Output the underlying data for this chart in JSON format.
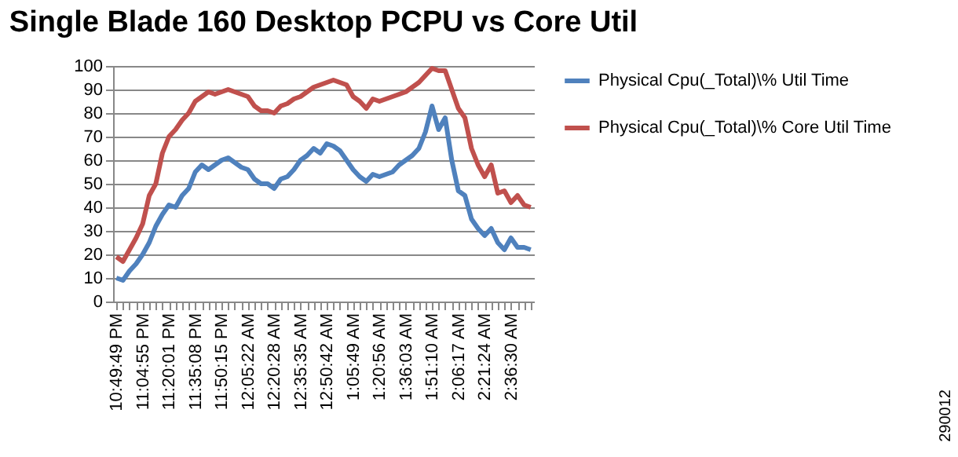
{
  "chart_data": {
    "type": "line",
    "title": "Single Blade 160 Desktop PCPU vs Core Util",
    "categories": [
      "10:49:49 PM",
      null,
      null,
      null,
      "11:04:55 PM",
      null,
      null,
      null,
      "11:20:01 PM",
      null,
      null,
      null,
      "11:35:08 PM",
      null,
      null,
      null,
      "11:50:15 PM",
      null,
      null,
      null,
      "12:05:22 AM",
      null,
      null,
      null,
      "12:20:28 AM",
      null,
      null,
      null,
      "12:35:35 AM",
      null,
      null,
      null,
      "12:50:42 AM",
      null,
      null,
      null,
      "1:05:49 AM",
      null,
      null,
      null,
      "1:20:56 AM",
      null,
      null,
      null,
      "1:36:03 AM",
      null,
      null,
      null,
      "1:51:10 AM",
      null,
      null,
      null,
      "2:06:17 AM",
      null,
      null,
      null,
      "2:21:24 AM",
      null,
      null,
      null,
      "2:36:30 AM",
      null,
      null,
      null
    ],
    "series": [
      {
        "name": "Physical Cpu(_Total)\\% Util Time",
        "color": "#4f81bd",
        "values": [
          10,
          9,
          13,
          16,
          20,
          25,
          32,
          37,
          41,
          40,
          45,
          48,
          55,
          58,
          56,
          58,
          60,
          61,
          59,
          57,
          56,
          52,
          50,
          50,
          48,
          52,
          53,
          56,
          60,
          62,
          65,
          63,
          67,
          66,
          64,
          60,
          56,
          53,
          51,
          54,
          53,
          54,
          55,
          58,
          60,
          62,
          65,
          72,
          83,
          73,
          78,
          60,
          47,
          45,
          35,
          31,
          28,
          31,
          25,
          22,
          27,
          23,
          23,
          22
        ]
      },
      {
        "name": "Physical Cpu(_Total)\\% Core Util Time",
        "color": "#c0504d",
        "values": [
          19,
          17,
          22,
          27,
          33,
          45,
          50,
          63,
          70,
          73,
          77,
          80,
          85,
          87,
          89,
          88,
          89,
          90,
          89,
          88,
          87,
          83,
          81,
          81,
          80,
          83,
          84,
          86,
          87,
          89,
          91,
          92,
          93,
          94,
          93,
          92,
          87,
          85,
          82,
          86,
          85,
          86,
          87,
          88,
          89,
          91,
          93,
          96,
          99,
          98,
          98,
          90,
          82,
          78,
          65,
          58,
          53,
          58,
          46,
          47,
          42,
          45,
          41,
          40
        ]
      }
    ],
    "ylim": [
      0,
      100
    ],
    "yticks": [
      0,
      10,
      20,
      30,
      40,
      50,
      60,
      70,
      80,
      90,
      100
    ],
    "grid": "y",
    "legend": "right",
    "marker": "none",
    "line_style": "solid",
    "annotations": [
      "290012"
    ]
  }
}
